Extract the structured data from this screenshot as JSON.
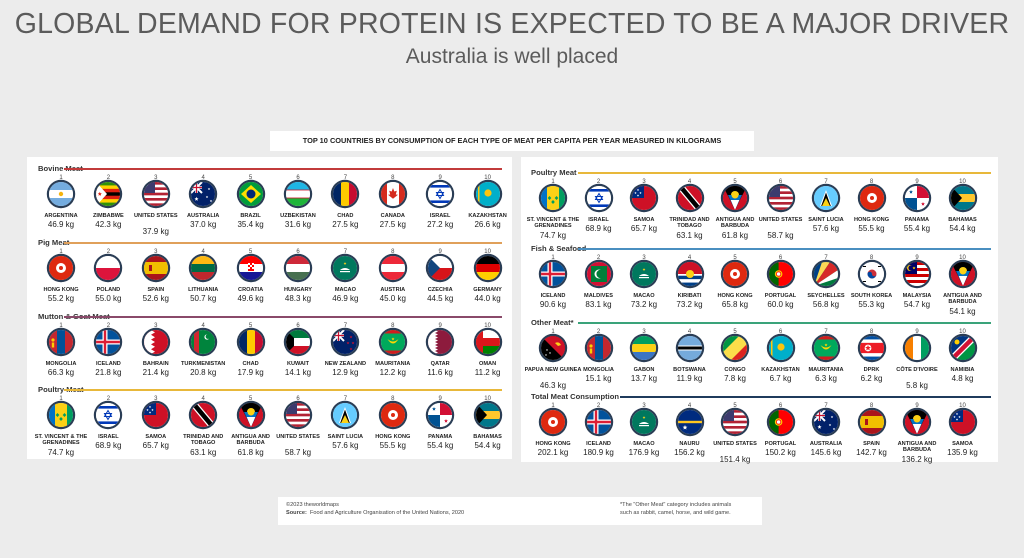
{
  "title": "GLOBAL DEMAND FOR PROTEIN IS EXPECTED TO BE A MAJOR DRIVER",
  "subtitle": "Australia is well placed",
  "header": "TOP 10 COUNTRIES BY CONSUMPTION OF EACH TYPE OF MEAT PER CAPITA PER YEAR MEASURED IN KILOGRAMS",
  "footer": {
    "copyright": "©2023 theworldmaps",
    "source_label": "Source:",
    "source_text": "Food and Agriculture Organisation of the United Nations, 2020",
    "note_line1": "*The \"Other Meat\" category includes animals",
    "note_line2": "such as rabbit, camel, horse, and wild game."
  },
  "chart_data": [
    {
      "type": "table",
      "title": "Bovine Meat",
      "line_color": "#c23b3b",
      "rows": [
        {
          "rank": "1",
          "country": "ARGENTINA",
          "value": "46.9 kg",
          "flag": "argentina-flag"
        },
        {
          "rank": "2",
          "country": "ZIMBABWE",
          "value": "42.3 kg",
          "flag": "zimbabwe-flag"
        },
        {
          "rank": "3",
          "country": "UNITED STATES",
          "value": "37.9 kg",
          "flag": "usa-flag"
        },
        {
          "rank": "4",
          "country": "AUSTRALIA",
          "value": "37.0 kg",
          "flag": "australia-flag"
        },
        {
          "rank": "5",
          "country": "BRAZIL",
          "value": "35.4 kg",
          "flag": "brazil-flag"
        },
        {
          "rank": "6",
          "country": "UZBEKISTAN",
          "value": "31.6 kg",
          "flag": "uzbekistan-flag"
        },
        {
          "rank": "7",
          "country": "CHAD",
          "value": "27.5 kg",
          "flag": "chad-flag"
        },
        {
          "rank": "8",
          "country": "CANADA",
          "value": "27.5 kg",
          "flag": "canada-flag"
        },
        {
          "rank": "9",
          "country": "ISRAEL",
          "value": "27.2 kg",
          "flag": "israel-flag"
        },
        {
          "rank": "10",
          "country": "KAZAKHSTAN",
          "value": "26.6 kg",
          "flag": "kazakhstan-flag"
        }
      ]
    },
    {
      "type": "table",
      "title": "Pig Meat",
      "line_color": "#e0a05a",
      "rows": [
        {
          "rank": "1",
          "country": "HONG KONG",
          "value": "55.2 kg",
          "flag": "hongkong-flag"
        },
        {
          "rank": "2",
          "country": "POLAND",
          "value": "55.0 kg",
          "flag": "poland-flag"
        },
        {
          "rank": "3",
          "country": "SPAIN",
          "value": "52.6 kg",
          "flag": "spain-flag"
        },
        {
          "rank": "4",
          "country": "LITHUANIA",
          "value": "50.7 kg",
          "flag": "lithuania-flag"
        },
        {
          "rank": "5",
          "country": "CROATIA",
          "value": "49.6 kg",
          "flag": "croatia-flag"
        },
        {
          "rank": "6",
          "country": "HUNGARY",
          "value": "48.3 kg",
          "flag": "hungary-flag"
        },
        {
          "rank": "7",
          "country": "MACAO",
          "value": "46.9 kg",
          "flag": "macao-flag"
        },
        {
          "rank": "8",
          "country": "AUSTRIA",
          "value": "45.0 kg",
          "flag": "austria-flag"
        },
        {
          "rank": "9",
          "country": "CZECHIA",
          "value": "44.5 kg",
          "flag": "czechia-flag"
        },
        {
          "rank": "10",
          "country": "GERMANY",
          "value": "44.0 kg",
          "flag": "germany-flag"
        }
      ]
    },
    {
      "type": "table",
      "title": "Mutton & Goat Meat",
      "line_color": "#8a4a6a",
      "rows": [
        {
          "rank": "1",
          "country": "MONGOLIA",
          "value": "66.3 kg",
          "flag": "mongolia-flag"
        },
        {
          "rank": "2",
          "country": "ICELAND",
          "value": "21.8 kg",
          "flag": "iceland-flag"
        },
        {
          "rank": "3",
          "country": "BAHRAIN",
          "value": "21.4 kg",
          "flag": "bahrain-flag"
        },
        {
          "rank": "4",
          "country": "TURKMENISTAN",
          "value": "20.8 kg",
          "flag": "turkmenistan-flag"
        },
        {
          "rank": "5",
          "country": "CHAD",
          "value": "17.9 kg",
          "flag": "chad-flag"
        },
        {
          "rank": "6",
          "country": "KUWAIT",
          "value": "14.1 kg",
          "flag": "kuwait-flag"
        },
        {
          "rank": "7",
          "country": "NEW ZEALAND",
          "value": "12.9 kg",
          "flag": "newzealand-flag"
        },
        {
          "rank": "8",
          "country": "MAURITANIA",
          "value": "12.2 kg",
          "flag": "mauritania-flag"
        },
        {
          "rank": "9",
          "country": "QATAR",
          "value": "11.6 kg",
          "flag": "qatar-flag"
        },
        {
          "rank": "10",
          "country": "OMAN",
          "value": "11.2 kg",
          "flag": "oman-flag"
        }
      ]
    },
    {
      "type": "table",
      "title": "Poultry Meat",
      "line_color": "#e8b83a",
      "rows": [
        {
          "rank": "1",
          "country": "ST. VINCENT & THE GRENADINES",
          "value": "74.7 kg",
          "flag": "stvincent-flag"
        },
        {
          "rank": "2",
          "country": "ISRAEL",
          "value": "68.9 kg",
          "flag": "israel-flag"
        },
        {
          "rank": "3",
          "country": "SAMOA",
          "value": "65.7 kg",
          "flag": "samoa-flag"
        },
        {
          "rank": "4",
          "country": "TRINIDAD AND TOBAGO",
          "value": "63.1 kg",
          "flag": "trinidad-flag"
        },
        {
          "rank": "5",
          "country": "ANTIGUA AND BARBUDA",
          "value": "61.8 kg",
          "flag": "antigua-flag"
        },
        {
          "rank": "6",
          "country": "UNITED STATES",
          "value": "58.7 kg",
          "flag": "usa-flag"
        },
        {
          "rank": "7",
          "country": "SAINT LUCIA",
          "value": "57.6 kg",
          "flag": "stlucia-flag"
        },
        {
          "rank": "8",
          "country": "HONG KONG",
          "value": "55.5 kg",
          "flag": "hongkong-flag"
        },
        {
          "rank": "9",
          "country": "PANAMA",
          "value": "55.4 kg",
          "flag": "panama-flag"
        },
        {
          "rank": "10",
          "country": "BAHAMAS",
          "value": "54.4 kg",
          "flag": "bahamas-flag"
        }
      ]
    },
    {
      "type": "table",
      "title": "Poultry Meat",
      "line_color": "#e8b83a",
      "rows": [
        {
          "rank": "1",
          "country": "ST. VINCENT & THE GRENADINES",
          "value": "74.7 kg",
          "flag": "stvincent-flag"
        },
        {
          "rank": "2",
          "country": "ISRAEL",
          "value": "68.9 kg",
          "flag": "israel-flag"
        },
        {
          "rank": "3",
          "country": "SAMOA",
          "value": "65.7 kg",
          "flag": "samoa-flag"
        },
        {
          "rank": "4",
          "country": "TRINIDAD AND TOBAGO",
          "value": "63.1 kg",
          "flag": "trinidad-flag"
        },
        {
          "rank": "5",
          "country": "ANTIGUA AND BARBUDA",
          "value": "61.8 kg",
          "flag": "antigua-flag"
        },
        {
          "rank": "6",
          "country": "UNITED STATES",
          "value": "58.7 kg",
          "flag": "usa-flag"
        },
        {
          "rank": "7",
          "country": "SAINT LUCIA",
          "value": "57.6 kg",
          "flag": "stlucia-flag"
        },
        {
          "rank": "8",
          "country": "HONG KONG",
          "value": "55.5 kg",
          "flag": "hongkong-flag"
        },
        {
          "rank": "9",
          "country": "PANAMA",
          "value": "55.4 kg",
          "flag": "panama-flag"
        },
        {
          "rank": "10",
          "country": "BAHAMAS",
          "value": "54.4 kg",
          "flag": "bahamas-flag"
        }
      ]
    },
    {
      "type": "table",
      "title": "Fish & Seafood",
      "line_color": "#4a8fc0",
      "rows": [
        {
          "rank": "1",
          "country": "ICELAND",
          "value": "90.6 kg",
          "flag": "iceland-flag"
        },
        {
          "rank": "2",
          "country": "MALDIVES",
          "value": "83.1 kg",
          "flag": "maldives-flag"
        },
        {
          "rank": "3",
          "country": "MACAO",
          "value": "73.2 kg",
          "flag": "macao-flag"
        },
        {
          "rank": "4",
          "country": "KIRIBATI",
          "value": "73.2 kg",
          "flag": "kiribati-flag"
        },
        {
          "rank": "5",
          "country": "HONG KONG",
          "value": "65.8 kg",
          "flag": "hongkong-flag"
        },
        {
          "rank": "6",
          "country": "PORTUGAL",
          "value": "60.0 kg",
          "flag": "portugal-flag"
        },
        {
          "rank": "7",
          "country": "SEYCHELLES",
          "value": "56.8 kg",
          "flag": "seychelles-flag"
        },
        {
          "rank": "8",
          "country": "SOUTH KOREA",
          "value": "55.3 kg",
          "flag": "southkorea-flag"
        },
        {
          "rank": "9",
          "country": "MALAYSIA",
          "value": "54.7 kg",
          "flag": "malaysia-flag"
        },
        {
          "rank": "10",
          "country": "ANTIGUA AND BARBUDA",
          "value": "54.1 kg",
          "flag": "antigua-flag"
        }
      ]
    },
    {
      "type": "table",
      "title": "Other Meat*",
      "line_color": "#3aa37a",
      "rows": [
        {
          "rank": "1",
          "country": "PAPUA NEW GUINEA",
          "value": "46.3 kg",
          "flag": "png-flag"
        },
        {
          "rank": "2",
          "country": "MONGOLIA",
          "value": "15.1 kg",
          "flag": "mongolia-flag"
        },
        {
          "rank": "3",
          "country": "GABON",
          "value": "13.7 kg",
          "flag": "gabon-flag"
        },
        {
          "rank": "4",
          "country": "BOTSWANA",
          "value": "11.9 kg",
          "flag": "botswana-flag"
        },
        {
          "rank": "5",
          "country": "CONGO",
          "value": "7.8 kg",
          "flag": "congo-flag"
        },
        {
          "rank": "6",
          "country": "KAZAKHSTAN",
          "value": "6.7 kg",
          "flag": "kazakhstan-flag"
        },
        {
          "rank": "7",
          "country": "MAURITANIA",
          "value": "6.3 kg",
          "flag": "mauritania-flag"
        },
        {
          "rank": "8",
          "country": "DPRK",
          "value": "6.2 kg",
          "flag": "dprk-flag"
        },
        {
          "rank": "9",
          "country": "CÔTE D'IVOIRE",
          "value": "5.8 kg",
          "flag": "ivorycoast-flag"
        },
        {
          "rank": "10",
          "country": "NAMIBIA",
          "value": "4.8 kg",
          "flag": "namibia-flag"
        }
      ]
    },
    {
      "type": "table",
      "title": "Total Meat Consumption",
      "line_color": "#1f3b5c",
      "rows": [
        {
          "rank": "1",
          "country": "HONG KONG",
          "value": "202.1 kg",
          "flag": "hongkong-flag"
        },
        {
          "rank": "2",
          "country": "ICELAND",
          "value": "180.9 kg",
          "flag": "iceland-flag"
        },
        {
          "rank": "3",
          "country": "MACAO",
          "value": "176.9 kg",
          "flag": "macao-flag"
        },
        {
          "rank": "4",
          "country": "NAURU",
          "value": "156.2 kg",
          "flag": "nauru-flag"
        },
        {
          "rank": "5",
          "country": "UNITED STATES",
          "value": "151.4 kg",
          "flag": "usa-flag"
        },
        {
          "rank": "6",
          "country": "PORTUGAL",
          "value": "150.2 kg",
          "flag": "portugal-flag"
        },
        {
          "rank": "7",
          "country": "AUSTRALIA",
          "value": "145.6 kg",
          "flag": "australia-flag"
        },
        {
          "rank": "8",
          "country": "SPAIN",
          "value": "142.7 kg",
          "flag": "spain-flag"
        },
        {
          "rank": "9",
          "country": "ANTIGUA AND BARBUDA",
          "value": "136.2 kg",
          "flag": "antigua-flag"
        },
        {
          "rank": "10",
          "country": "SAMOA",
          "value": "135.9 kg",
          "flag": "samoa-flag"
        }
      ]
    }
  ]
}
